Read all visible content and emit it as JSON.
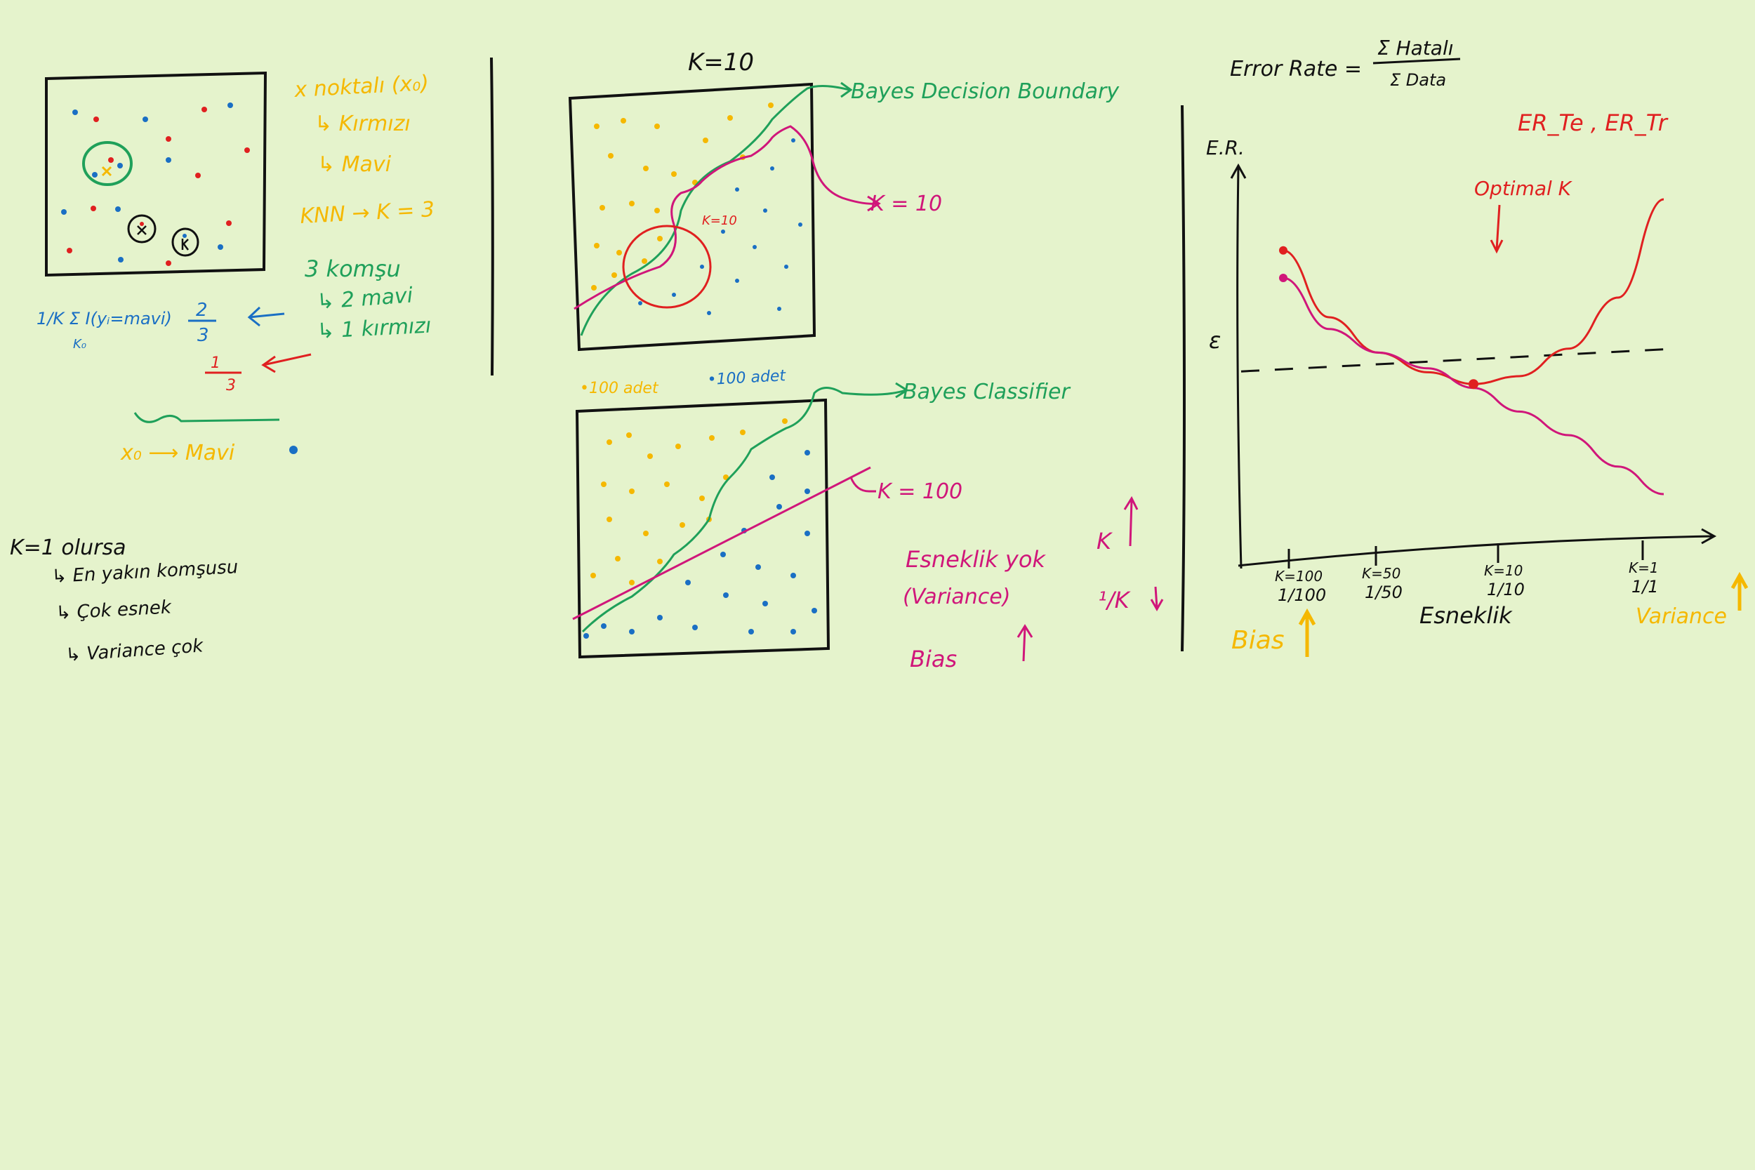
{
  "colors": {
    "background": "#e5f3cc",
    "black": "#111111",
    "orange": "#f5b800",
    "blue": "#1a6fc4",
    "red": "#e02020",
    "green": "#1fa05a",
    "magenta": "#d0167a"
  },
  "knn_panel": {
    "orange_notes": [
      "x noktalı (x₀)",
      "↳ Kırmızı",
      "↳ Mavi",
      "KNN → K = 3"
    ],
    "green_notes": [
      "3 komşu",
      "↳ 2 mavi",
      "↳ 1 kırmızı"
    ],
    "formula": "1/K Σ I(yᵢ=mavi)",
    "formula_sub": "K₀",
    "fraction_blue_num": "2",
    "fraction_blue_den": "3",
    "fraction_red_num": "1",
    "fraction_red_den": "3",
    "result": "x₀ ⟶ Mavi"
  },
  "k1_notes": [
    "K=1 olursa",
    "↳ En yakın komşusu",
    "↳ Çok esnek",
    "↳ Variance çok"
  ],
  "middle_panel": {
    "title": "K=10",
    "bayes_label": "Bayes Decision Boundary",
    "k10_arrow_label": "K = 10",
    "k10_inner_label": "K=10",
    "orange_count": "•100 adet",
    "blue_count": "•100 adet",
    "bayes_classifier_label": "Bayes Classifier",
    "k100_label": "K = 100",
    "esneklik_yok": "Esneklik yok",
    "variance_label": "(Variance)",
    "bias_label": "Bias",
    "k_up": "K",
    "inv_k_down": "¹/K"
  },
  "error_chart": {
    "formula_left": "Error Rate =",
    "formula_num": "Σ Hatalı",
    "formula_den": "Σ Data",
    "y_axis_label": "E.R.",
    "epsilon_label": "ε",
    "curves_label": "ER_Te , ER_Tr",
    "optimal_label": "Optimal K",
    "x_axis_label": "Esneklik",
    "bias_label": "Bias",
    "variance_label": "Variance"
  },
  "chart_data": {
    "type": "line",
    "categories": [
      "1/100",
      "1/50",
      "1/10",
      "1/1"
    ],
    "tick_top_labels": [
      "K=100",
      "K=50",
      "K=10",
      "K=1"
    ],
    "xlabel": "Esneklik",
    "ylabel": "E.R.",
    "x": [
      0.0,
      0.12,
      0.25,
      0.38,
      0.5,
      0.62,
      0.75,
      0.88,
      1.0
    ],
    "series": [
      {
        "name": "ER_Te",
        "color": "#e02020",
        "values": [
          0.72,
          0.55,
          0.46,
          0.41,
          0.38,
          0.4,
          0.47,
          0.6,
          0.85
        ]
      },
      {
        "name": "ER_Tr",
        "color": "#d0167a",
        "values": [
          0.65,
          0.52,
          0.46,
          0.42,
          0.37,
          0.31,
          0.25,
          0.17,
          0.1
        ]
      }
    ],
    "reference_line": {
      "label": "ε",
      "value": 0.43,
      "style": "dashed"
    },
    "ylim": [
      0,
      1
    ],
    "grid": false
  }
}
